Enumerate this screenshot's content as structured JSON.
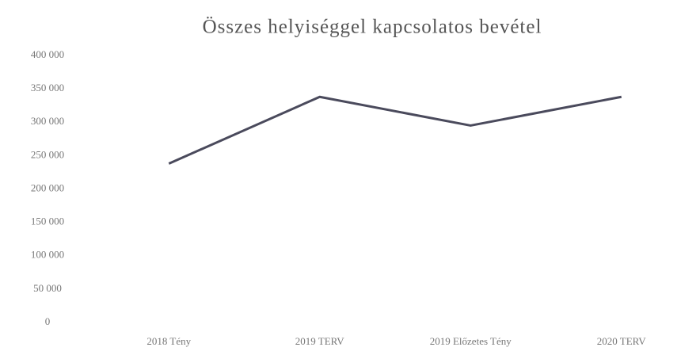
{
  "chart_data": {
    "type": "line",
    "title": "Összes helyiséggel kapcsolatos bevétel",
    "categories": [
      "2018 Tény",
      "2019 TERV",
      "2019 Előzetes Tény",
      "2020 TERV"
    ],
    "series": [
      {
        "name": "Összes helyiséggel kapcsolatos bevétel",
        "color": "#4a4a5c",
        "values": [
          238000,
          338000,
          295000,
          338000
        ]
      }
    ],
    "ylim": [
      0,
      400000
    ],
    "yticks": [
      0,
      {
        "value": 50000,
        "label": "50 000"
      },
      {
        "value": 100000,
        "label": "100 000"
      },
      {
        "value": 150000,
        "label": "150 000"
      },
      {
        "value": 200000,
        "label": "200 000"
      },
      {
        "value": 250000,
        "label": "250 000"
      },
      {
        "value": 300000,
        "label": "300 000"
      },
      {
        "value": 350000,
        "label": "350 000"
      },
      {
        "value": 400000,
        "label": "400 000"
      }
    ],
    "grid": false,
    "legend": false
  }
}
